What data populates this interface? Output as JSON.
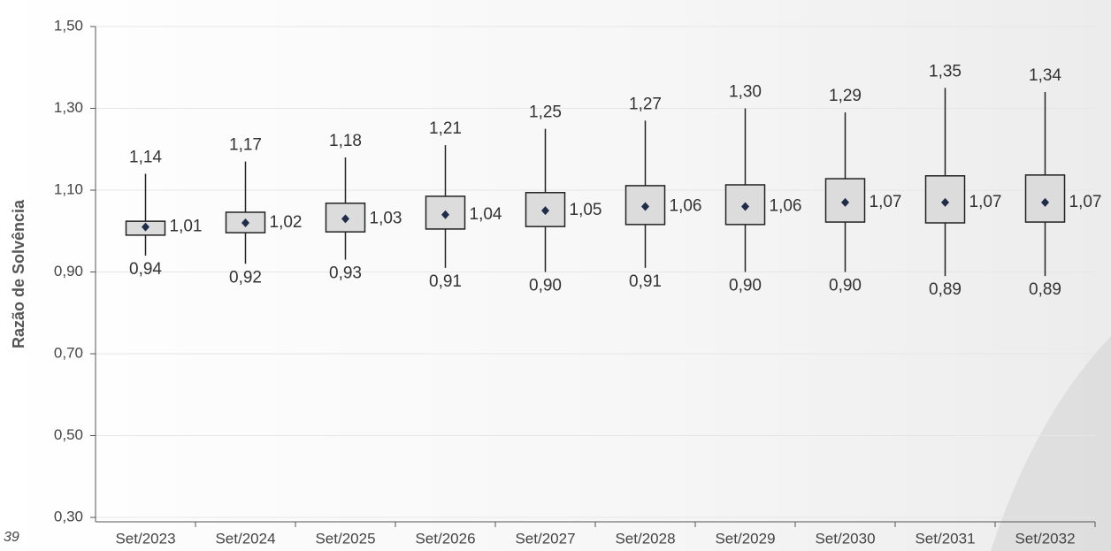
{
  "corner_text": "39",
  "chart_data": {
    "type": "boxplot",
    "y_axis_label": "Razão de Solvência",
    "categories": [
      "Set/2023",
      "Set/2024",
      "Set/2025",
      "Set/2026",
      "Set/2027",
      "Set/2028",
      "Set/2029",
      "Set/2030",
      "Set/2031",
      "Set/2032"
    ],
    "whisker_high": {
      "values": [
        1.14,
        1.17,
        1.18,
        1.21,
        1.25,
        1.27,
        1.3,
        1.29,
        1.35,
        1.34
      ],
      "value_labels": [
        "1,14",
        "1,17",
        "1,18",
        "1,21",
        "1,25",
        "1,27",
        "1,30",
        "1,29",
        "1,35",
        "1,34"
      ]
    },
    "box_high": {
      "values": [
        1.024,
        1.046,
        1.068,
        1.085,
        1.094,
        1.111,
        1.113,
        1.128,
        1.135,
        1.137
      ]
    },
    "mean": {
      "values": [
        1.01,
        1.02,
        1.03,
        1.04,
        1.05,
        1.06,
        1.06,
        1.07,
        1.07,
        1.07
      ],
      "value_labels": [
        "1,01",
        "1,02",
        "1,03",
        "1,04",
        "1,05",
        "1,06",
        "1,06",
        "1,07",
        "1,07",
        "1,07"
      ]
    },
    "box_low": {
      "values": [
        0.99,
        0.996,
        0.998,
        1.005,
        1.011,
        1.016,
        1.016,
        1.022,
        1.02,
        1.022
      ]
    },
    "whisker_low": {
      "values": [
        0.94,
        0.92,
        0.93,
        0.91,
        0.9,
        0.91,
        0.9,
        0.9,
        0.89,
        0.89
      ],
      "value_labels": [
        "0,94",
        "0,92",
        "0,93",
        "0,91",
        "0,90",
        "0,91",
        "0,90",
        "0,90",
        "0,89",
        "0,89"
      ]
    },
    "box_color": "#dcdcdc",
    "mean_color": "#1f2d4a",
    "ylim": [
      0.3,
      1.5
    ],
    "yticks": [
      {
        "value": 0.3,
        "label": "0,30"
      },
      {
        "value": 0.5,
        "label": "0,50"
      },
      {
        "value": 0.7,
        "label": "0,70"
      },
      {
        "value": 0.9,
        "label": "0,90"
      },
      {
        "value": 1.1,
        "label": "1,10"
      },
      {
        "value": 1.3,
        "label": "1,30"
      },
      {
        "value": 1.5,
        "label": "1,50"
      }
    ],
    "grid": true
  }
}
